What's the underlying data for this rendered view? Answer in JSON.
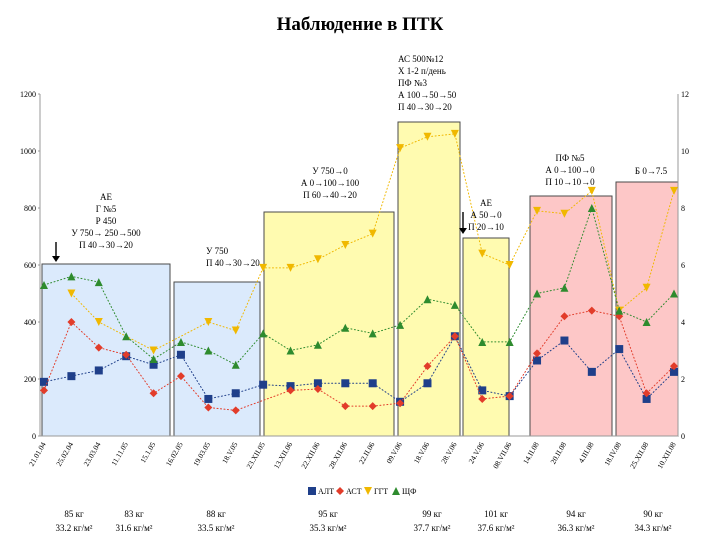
{
  "chart_data": {
    "type": "line",
    "title": "Наблюдение в ПТК",
    "ylim_left": [
      0,
      1200
    ],
    "ylim_right": [
      0,
      12
    ],
    "yticks_left": [
      "0",
      "200",
      "400",
      "600",
      "800",
      "1000",
      "1200"
    ],
    "yticks_right": [
      "0",
      "2",
      "4",
      "6",
      "8",
      "10",
      "12"
    ],
    "x": [
      "21.01.04",
      "25.02.04",
      "23.03.04",
      "11.11.05",
      "15.1.05",
      "16.02.05",
      "19.03.05",
      "18.V.05",
      "23.XII.05",
      "13.XII.06",
      "22.XII.06",
      "28.XII.06",
      "22.II.06",
      "09.V.06",
      "18.V.06",
      "28.V.06",
      "24.V.06",
      "08.VII.06",
      "14.II.08",
      "20.II.08",
      "4.III.08",
      "18.IV.08",
      "25.XII.08",
      "10.XII.08"
    ],
    "series": [
      {
        "name": "АЛТ",
        "color": "#1f3f8a",
        "marker": "square",
        "values": [
          190,
          210,
          230,
          280,
          250,
          285,
          130,
          150,
          180,
          175,
          185,
          185,
          185,
          120,
          185,
          350,
          160,
          140,
          265,
          335,
          225,
          305,
          130,
          225
        ]
      },
      {
        "name": "АСТ",
        "color": "#e23c2a",
        "marker": "diamond",
        "values": [
          160,
          400,
          310,
          285,
          150,
          210,
          100,
          90,
          null,
          160,
          165,
          105,
          105,
          115,
          245,
          350,
          130,
          140,
          290,
          420,
          440,
          420,
          150,
          245
        ]
      },
      {
        "name": "ГГТ",
        "color": "#f0b800",
        "marker": "triangle-down",
        "values": [
          null,
          500,
          400,
          null,
          300,
          null,
          400,
          370,
          590,
          590,
          620,
          670,
          710,
          1010,
          1050,
          1060,
          640,
          600,
          790,
          780,
          860,
          440,
          520,
          860
        ]
      },
      {
        "name": "ЩФ",
        "color": "#2e8b2e",
        "marker": "triangle-up",
        "values": [
          530,
          560,
          540,
          350,
          270,
          330,
          300,
          250,
          360,
          300,
          320,
          380,
          360,
          390,
          480,
          460,
          330,
          330,
          500,
          520,
          800,
          440,
          400,
          500
        ]
      }
    ],
    "legend": "bottom-center",
    "annotations": [
      {
        "lines": [
          "АЕ",
          "Г №5",
          "Р 450",
          "У 750→ 250→500",
          "П 40→30→20"
        ]
      },
      {
        "lines": [
          "У 750",
          "П 40→30→20"
        ]
      },
      {
        "lines": [
          "У 750→0",
          "А 0→100→100",
          "П 60→40→20"
        ]
      },
      {
        "lines": [
          "АС 500№12",
          "Х 1-2 п/день",
          "ПФ №3",
          "А 100→50→50",
          "П 40→30→20"
        ]
      },
      {
        "lines": [
          "АЕ",
          "А 50→0",
          "П 20→10"
        ]
      },
      {
        "lines": [
          "ПФ №5",
          "А 0→100→0",
          "П 10→10→0"
        ]
      },
      {
        "lines": [
          "Б 0→7.5"
        ]
      }
    ],
    "footer": [
      {
        "weight": "85 кг",
        "bmi": "33.2 кг/м²"
      },
      {
        "weight": "83 кг",
        "bmi": "31.6 кг/м²"
      },
      {
        "weight": "88 кг",
        "bmi": "33.5 кг/м²"
      },
      {
        "weight": "95 кг",
        "bmi": "35.3 кг/м²"
      },
      {
        "weight": "99 кг",
        "bmi": "37.7 кг/м²"
      },
      {
        "weight": "101 кг",
        "bmi": "37.6 кг/м²"
      },
      {
        "weight": "94 кг",
        "bmi": "36.3 кг/м²"
      },
      {
        "weight": "90 кг",
        "bmi": "34.3 кг/м²"
      }
    ],
    "colors": {
      "period_blue": "#dbeafc",
      "period_yellow": "#fffbb0",
      "period_red": "#fdc7c7"
    }
  }
}
